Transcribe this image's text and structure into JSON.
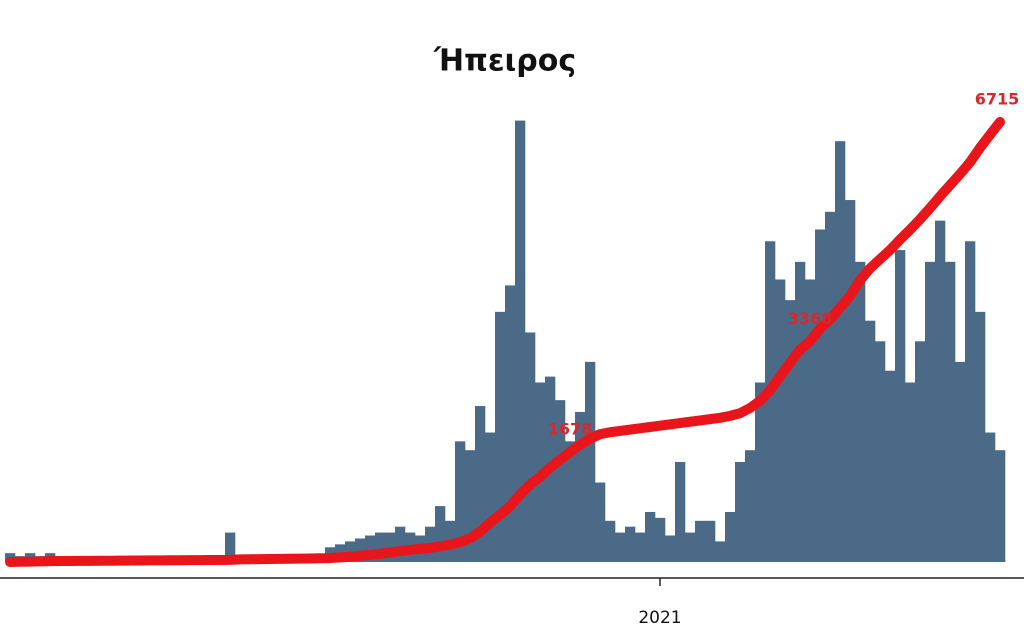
{
  "chart_data": {
    "type": "bar_line",
    "title": "Ήπειρος",
    "categories": [
      null,
      null,
      null,
      null,
      null,
      null,
      null,
      null,
      null,
      null,
      null,
      null,
      null,
      null,
      null,
      null,
      null,
      null,
      null,
      null,
      null,
      null,
      null,
      null,
      null,
      null,
      null,
      null,
      null,
      null,
      null,
      null,
      null,
      null,
      null,
      null,
      null,
      null,
      null,
      null,
      null,
      null,
      null,
      null,
      null,
      null,
      null,
      null,
      null,
      null,
      null,
      null,
      null,
      null,
      null,
      null,
      null,
      null,
      null,
      null,
      null,
      null,
      null,
      null,
      null,
      "2021",
      null,
      null,
      null,
      null,
      null,
      null,
      null,
      null,
      null,
      null,
      null,
      null,
      null,
      null,
      null,
      null,
      null,
      null,
      null,
      null,
      null,
      null,
      null,
      null,
      null,
      null,
      null,
      null,
      null,
      null,
      null,
      null,
      null,
      null
    ],
    "ylim": [
      0,
      157
    ],
    "y2lim": [
      0,
      7050
    ],
    "series": [
      {
        "type": "bar",
        "color": "#4a6a88",
        "values": [
          3,
          2,
          3,
          2,
          3,
          1,
          1,
          1,
          1,
          1,
          1,
          1,
          1,
          1,
          1,
          1,
          1,
          1,
          1,
          1,
          1,
          1,
          10,
          1,
          1,
          1,
          1,
          1,
          1,
          1,
          1,
          1,
          5,
          6,
          7,
          8,
          9,
          10,
          10,
          12,
          10,
          9,
          12,
          19,
          14,
          41,
          38,
          53,
          44,
          85,
          94,
          150,
          78,
          61,
          63,
          55,
          41,
          51,
          68,
          27,
          14,
          10,
          12,
          10,
          17,
          15,
          9,
          34,
          10,
          14,
          14,
          7,
          17,
          34,
          38,
          61,
          109,
          96,
          89,
          102,
          96,
          113,
          119,
          143,
          123,
          102,
          82,
          75,
          65,
          106,
          61,
          75,
          102,
          116,
          102,
          68,
          109,
          85,
          44,
          38
        ]
      },
      {
        "type": "line",
        "axis": "y2",
        "color": "#e8161b",
        "values": [
          0,
          3,
          6,
          9,
          13,
          15,
          16,
          17,
          18,
          19,
          20,
          21,
          22,
          23,
          24,
          25,
          26,
          27,
          28,
          29,
          30,
          31,
          32,
          40,
          42,
          44,
          46,
          48,
          50,
          52,
          54,
          57,
          60,
          70,
          80,
          95,
          110,
          125,
          145,
          165,
          185,
          200,
          215,
          240,
          265,
          300,
          360,
          460,
          600,
          720,
          850,
          1030,
          1180,
          1300,
          1440,
          1560,
          1678,
          1790,
          1880,
          1950,
          1980,
          2000,
          2020,
          2040,
          2060,
          2080,
          2100,
          2120,
          2140,
          2160,
          2180,
          2200,
          2230,
          2270,
          2350,
          2460,
          2620,
          2830,
          3040,
          3240,
          3368,
          3560,
          3700,
          3880,
          4060,
          4300,
          4480,
          4620,
          4760,
          4920,
          5070,
          5230,
          5400,
          5580,
          5750,
          5920,
          6100,
          6320,
          6520,
          6715
        ],
        "value_labels": [
          null,
          null,
          null,
          null,
          null,
          null,
          null,
          null,
          null,
          null,
          null,
          null,
          null,
          null,
          null,
          null,
          null,
          null,
          null,
          null,
          null,
          null,
          null,
          null,
          null,
          null,
          null,
          null,
          null,
          null,
          null,
          null,
          null,
          null,
          null,
          null,
          null,
          null,
          null,
          null,
          null,
          null,
          null,
          null,
          null,
          null,
          null,
          null,
          null,
          null,
          null,
          null,
          null,
          null,
          null,
          null,
          "1678",
          null,
          null,
          null,
          null,
          null,
          null,
          null,
          null,
          null,
          null,
          null,
          null,
          null,
          null,
          null,
          null,
          null,
          null,
          null,
          null,
          null,
          null,
          null,
          "3368",
          null,
          null,
          null,
          null,
          null,
          null,
          null,
          null,
          null,
          null,
          null,
          null,
          null,
          null,
          null,
          null,
          null,
          null,
          "6715"
        ]
      }
    ]
  }
}
